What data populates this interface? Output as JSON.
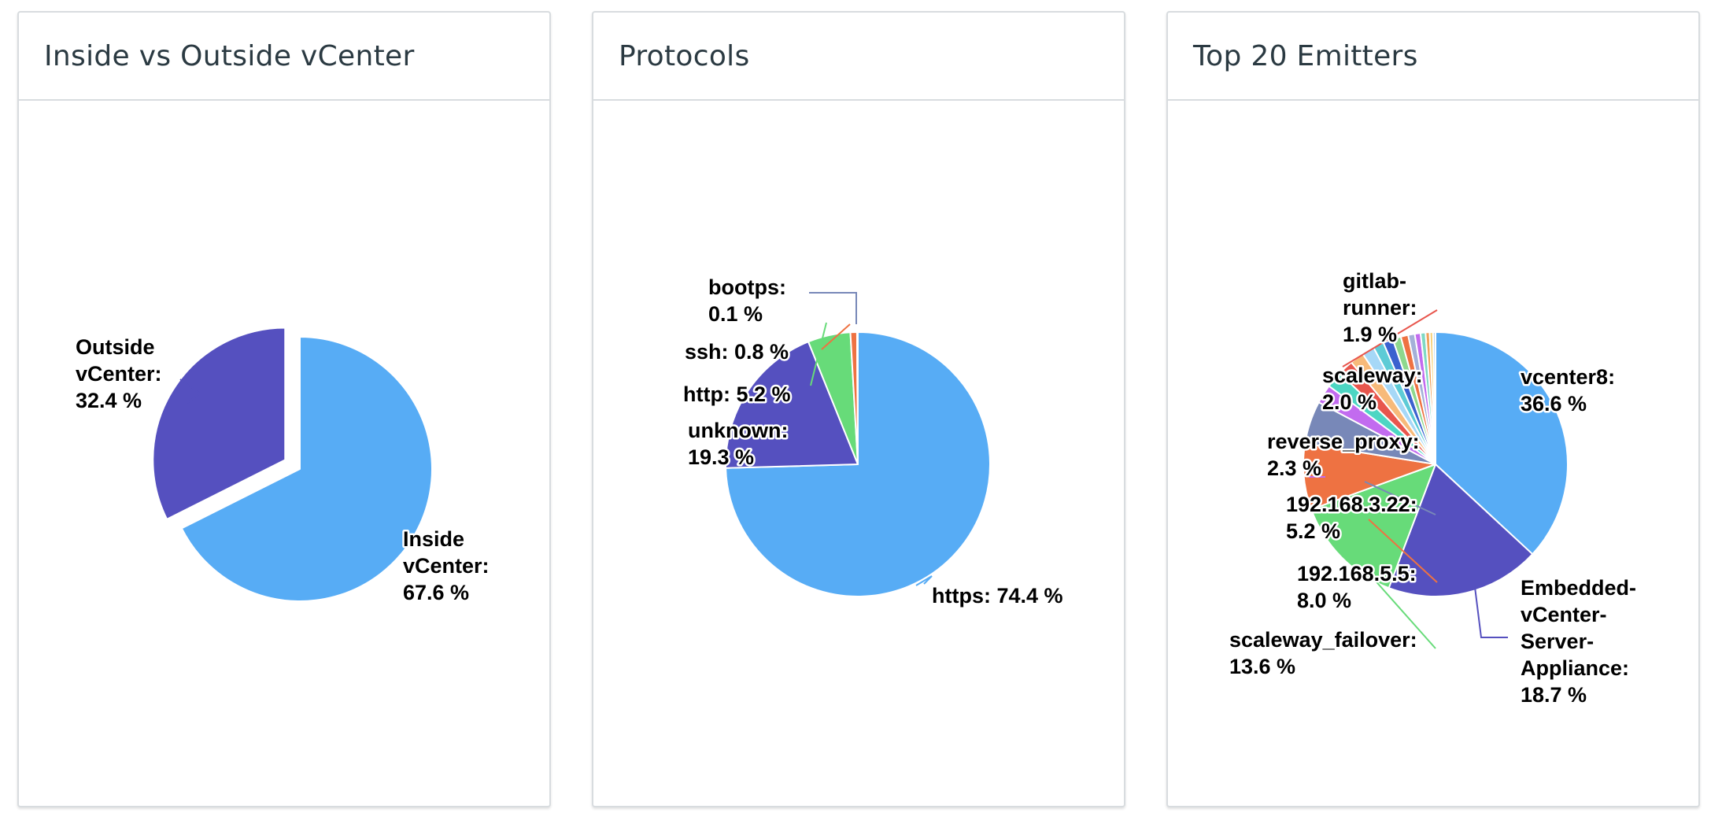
{
  "cards": [
    {
      "title": "Inside vs Outside vCenter"
    },
    {
      "title": "Protocols"
    },
    {
      "title": "Top 20 Emitters"
    }
  ],
  "chart_data": [
    {
      "type": "pie",
      "title": "Inside vs Outside vCenter",
      "slices": [
        {
          "name": "Inside vCenter",
          "value": 67.6,
          "color": "#57acf5",
          "label_lines": [
            "Inside",
            "vCenter:",
            "67.6 %"
          ]
        },
        {
          "name": "Outside vCenter",
          "value": 32.4,
          "color": "#5550bf",
          "label_lines": [
            "Outside",
            "vCenter:",
            "32.4 %"
          ]
        }
      ]
    },
    {
      "type": "pie",
      "title": "Protocols",
      "slices": [
        {
          "name": "https",
          "value": 74.4,
          "color": "#57acf5",
          "label_lines": [
            "https: 74.4 %"
          ]
        },
        {
          "name": "unknown",
          "value": 19.3,
          "color": "#5550bf",
          "label_lines": [
            "unknown:",
            "19.3 %"
          ]
        },
        {
          "name": "http",
          "value": 5.2,
          "color": "#67db79",
          "label_lines": [
            "http: 5.2 %"
          ]
        },
        {
          "name": "ssh",
          "value": 0.8,
          "color": "#ee7242",
          "label_lines": [
            "ssh: 0.8 %"
          ]
        },
        {
          "name": "bootps",
          "value": 0.1,
          "color": "#7888b8",
          "label_lines": [
            "bootps:",
            "0.1 %"
          ]
        }
      ]
    },
    {
      "type": "pie",
      "title": "Top 20 Emitters",
      "slices": [
        {
          "name": "vcenter8",
          "value": 36.6,
          "color": "#57acf5",
          "label_lines": [
            "vcenter8:",
            "36.6 %"
          ]
        },
        {
          "name": "Embedded-vCenter-Server-Appliance",
          "value": 18.7,
          "color": "#5550bf",
          "label_lines": [
            "Embedded-",
            "vCenter-",
            "Server-",
            "Appliance:",
            "18.7 %"
          ]
        },
        {
          "name": "scaleway_failover",
          "value": 13.6,
          "color": "#67db79",
          "label_lines": [
            "scaleway_failover:",
            "13.6 %"
          ]
        },
        {
          "name": "192.168.5.5",
          "value": 8.0,
          "color": "#ee7242",
          "label_lines": [
            "192.168.5.5:",
            "8.0 %"
          ]
        },
        {
          "name": "192.168.3.22",
          "value": 5.2,
          "color": "#7888b8",
          "label_lines": [
            "192.168.3.22:",
            "5.2 %"
          ]
        },
        {
          "name": "reverse_proxy",
          "value": 2.3,
          "color": "#c26bef",
          "label_lines": [
            "reverse_proxy:",
            "2.3 %"
          ]
        },
        {
          "name": "scaleway",
          "value": 2.0,
          "color": "#4dd6c3",
          "label_lines": [
            "scaleway:",
            "2.0 %"
          ]
        },
        {
          "name": "gitlab-runner",
          "value": 1.9,
          "color": "#e8564d",
          "label_lines": [
            "gitlab-",
            "runner:",
            "1.9 %"
          ]
        },
        {
          "name": "",
          "value": 1.7,
          "color": "#f7ba7a",
          "label_lines": []
        },
        {
          "name": "",
          "value": 1.5,
          "color": "#a6d8f7",
          "label_lines": []
        },
        {
          "name": "",
          "value": 1.3,
          "color": "#5dcbd6",
          "label_lines": []
        },
        {
          "name": "",
          "value": 1.2,
          "color": "#3b62cf",
          "label_lines": []
        },
        {
          "name": "",
          "value": 1.0,
          "color": "#8ed88e",
          "label_lines": []
        },
        {
          "name": "",
          "value": 0.9,
          "color": "#ee7242",
          "label_lines": []
        },
        {
          "name": "",
          "value": 0.8,
          "color": "#a4b0d8",
          "label_lines": []
        },
        {
          "name": "",
          "value": 0.7,
          "color": "#c26bef",
          "label_lines": []
        },
        {
          "name": "",
          "value": 0.6,
          "color": "#7fd9c4",
          "label_lines": []
        },
        {
          "name": "",
          "value": 0.5,
          "color": "#f0a15a",
          "label_lines": []
        },
        {
          "name": "",
          "value": 0.4,
          "color": "#f7d27a",
          "label_lines": []
        },
        {
          "name": "",
          "value": 0.3,
          "color": "#b8d6f2",
          "label_lines": []
        }
      ]
    }
  ]
}
